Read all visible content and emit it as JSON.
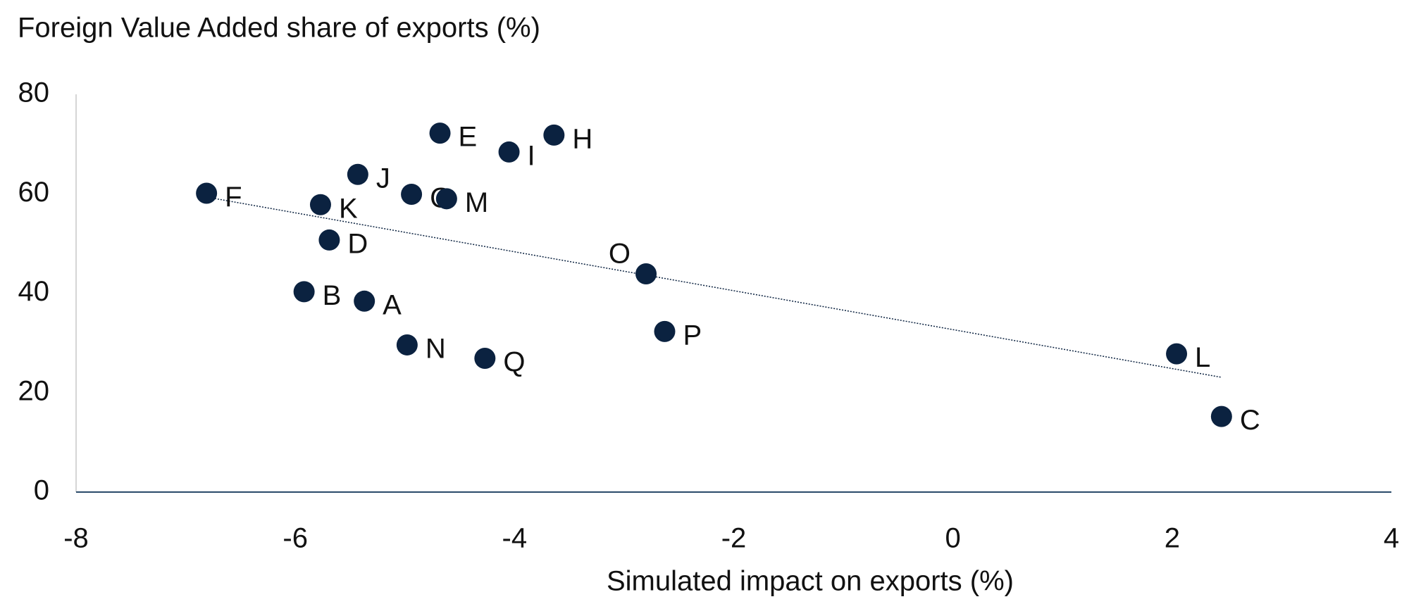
{
  "chart_data": {
    "type": "scatter",
    "y_axis_title": "Foreign Value Added share of exports (%)",
    "x_axis_title": "Simulated impact on exports (%)",
    "point_labels": [
      "F",
      "K",
      "D",
      "B",
      "A",
      "J",
      "G",
      "M",
      "E",
      "N",
      "Q",
      "I",
      "H",
      "O",
      "P",
      "L",
      "C"
    ],
    "x": [
      -6.81,
      -5.77,
      -5.69,
      -5.92,
      -5.37,
      -5.43,
      -4.94,
      -4.62,
      -4.68,
      -4.98,
      -4.27,
      -4.05,
      -3.64,
      -2.8,
      -2.63,
      2.04,
      2.45
    ],
    "values": [
      60.1,
      57.8,
      50.7,
      40.3,
      38.4,
      63.9,
      59.9,
      59.0,
      72.2,
      29.6,
      26.9,
      68.4,
      71.8,
      43.9,
      32.3,
      27.8,
      15.2
    ],
    "color": "#0b2240",
    "xlim": [
      -8,
      4
    ],
    "xticks": [
      -8,
      -6,
      -4,
      -2,
      0,
      2,
      4
    ],
    "ylim": [
      0,
      80
    ],
    "yticks": [
      0,
      20,
      40,
      60,
      80
    ],
    "trendline": true,
    "grid": false
  }
}
